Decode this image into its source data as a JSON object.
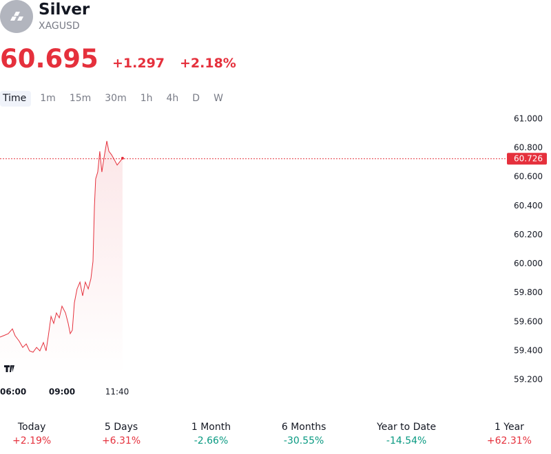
{
  "header": {
    "name": "Silver",
    "symbol": "XAGUSD",
    "price": "60.695",
    "change": "+1.297",
    "change_percent": "+2.18%"
  },
  "tabs": [
    "Time",
    "1m",
    "15m",
    "30m",
    "1h",
    "4h",
    "D",
    "W"
  ],
  "active_tab": 0,
  "chart_data": {
    "type": "line",
    "color": "#e5303c",
    "x": [
      6,
      6.17,
      6.4,
      6.6,
      6.73,
      6.93,
      7.1,
      7.27,
      7.43,
      7.6,
      7.77,
      7.93,
      8.1,
      8.23,
      8.33,
      8.47,
      8.6,
      8.73,
      8.87,
      9,
      9.17,
      9.3,
      9.4,
      9.5,
      9.6,
      9.73,
      9.87,
      10,
      10.13,
      10.27,
      10.4,
      10.5,
      10.57,
      10.63,
      10.73,
      10.83,
      10.93,
      11.03,
      11.17,
      11.27,
      11.4,
      11.53,
      11.67,
      11.8,
      11.93
    ],
    "values": [
      59.494,
      59.504,
      59.518,
      59.551,
      59.504,
      59.466,
      59.423,
      59.447,
      59.399,
      59.39,
      59.423,
      59.399,
      59.457,
      59.399,
      59.494,
      59.637,
      59.589,
      59.661,
      59.627,
      59.708,
      59.661,
      59.589,
      59.518,
      59.542,
      59.732,
      59.827,
      59.874,
      59.779,
      59.874,
      59.827,
      59.898,
      60.017,
      60.397,
      60.587,
      60.634,
      60.777,
      60.634,
      60.729,
      60.848,
      60.777,
      60.753,
      60.72,
      60.682,
      60.705,
      60.729
    ],
    "xlim": [
      6,
      30.5
    ],
    "xticks": [
      {
        "value": 6,
        "label": "06:00"
      },
      {
        "value": 9,
        "label": "09:00"
      },
      {
        "value": 11.667,
        "label": "11:40"
      }
    ],
    "ylim": [
      59.2,
      61
    ],
    "yticks": [
      {
        "value": 59.2,
        "label": "59.200"
      },
      {
        "value": 59.4,
        "label": "59.400"
      },
      {
        "value": 59.6,
        "label": "59.600"
      },
      {
        "value": 59.8,
        "label": "59.800"
      },
      {
        "value": 60,
        "label": "60.000"
      },
      {
        "value": 60.2,
        "label": "60.200"
      },
      {
        "value": 60.4,
        "label": "60.400"
      },
      {
        "value": 60.6,
        "label": "60.600"
      },
      {
        "value": 60.8,
        "label": "60.800"
      },
      {
        "value": 61,
        "label": "61.000"
      }
    ],
    "price_line": {
      "value": 60.726,
      "label": "60.726"
    }
  },
  "periods": [
    {
      "label": "Today",
      "change": "+2.19%",
      "direction": "up"
    },
    {
      "label": "5 Days",
      "change": "+6.31%",
      "direction": "up"
    },
    {
      "label": "1 Month",
      "change": "-2.66%",
      "direction": "down"
    },
    {
      "label": "6 Months",
      "change": "-30.55%",
      "direction": "down"
    },
    {
      "label": "Year to Date",
      "change": "-14.54%",
      "direction": "down"
    },
    {
      "label": "1 Year",
      "change": "+62.31%",
      "direction": "up"
    }
  ]
}
